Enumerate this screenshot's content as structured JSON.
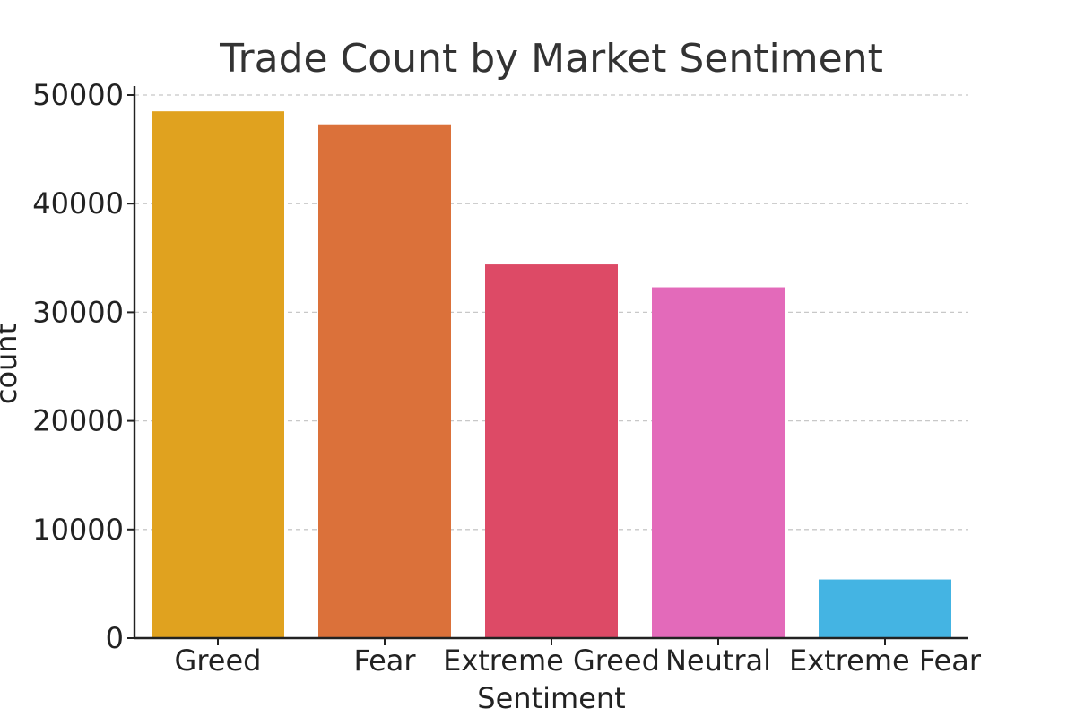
{
  "chart_data": {
    "type": "bar",
    "title": "Trade Count by Market Sentiment",
    "xlabel": "Sentiment",
    "ylabel": "count",
    "categories": [
      "Greed",
      "Fear",
      "Extreme Greed",
      "Neutral",
      "Extreme Fear"
    ],
    "values": [
      48500,
      47300,
      34400,
      32300,
      5400
    ],
    "colors": [
      "#e0a21f",
      "#db713a",
      "#dd4a66",
      "#e36aba",
      "#44b4e3"
    ],
    "ylim": [
      0,
      50000
    ],
    "yticks": [
      0,
      10000,
      20000,
      30000,
      40000,
      50000
    ],
    "ytick_labels": [
      "0",
      "10000",
      "20000",
      "30000",
      "40000",
      "50000"
    ],
    "grid": "y-dashed",
    "legend": "none"
  }
}
